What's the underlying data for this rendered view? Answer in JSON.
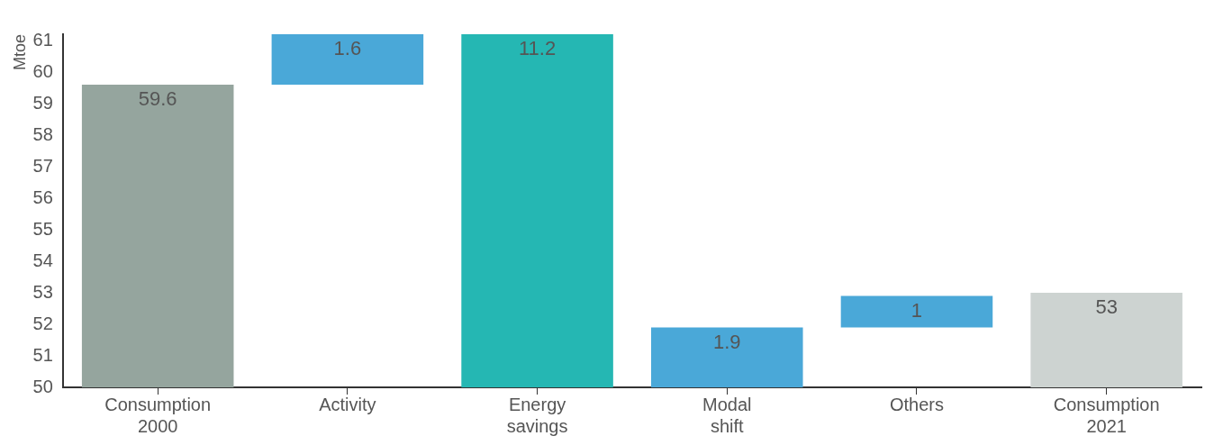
{
  "chart_data": {
    "type": "bar",
    "ylabel": "Mtoe",
    "categories": [
      "Consumption 2000",
      "Activity",
      "Energy savings",
      "Modal shift",
      "Others",
      "Consumption 2021"
    ],
    "base": [
      50,
      59.6,
      50,
      50,
      51.9,
      50
    ],
    "values": [
      9.6,
      1.6,
      11.2,
      1.9,
      1,
      3
    ],
    "value_labels": [
      "59.6",
      "1.6",
      "11.2",
      "1.9",
      "1",
      "53"
    ],
    "colors": [
      "#95a59e",
      "#4aa8d8",
      "#25b7b3",
      "#4aa8d8",
      "#4aa8d8",
      "#cdd3d1"
    ],
    "ylim": [
      50,
      61.2
    ],
    "yticks": [
      50,
      51,
      52,
      53,
      54,
      55,
      56,
      57,
      58,
      59,
      60,
      61
    ],
    "grid": false,
    "legend": false
  }
}
